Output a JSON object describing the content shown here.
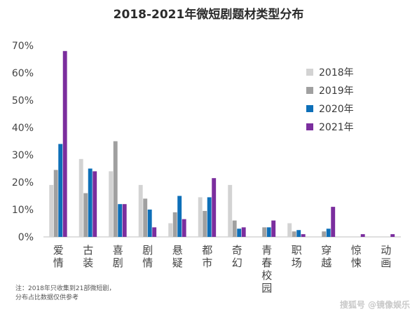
{
  "title": "2018-2021年微短剧题材类型分布",
  "note": [
    "注：2018年只收集到21部微短剧，",
    "分布占比数据仅供参考"
  ],
  "watermark": "搜狐号 @镜像娱乐",
  "chart_data": {
    "type": "bar",
    "title": "2018-2021年微短剧题材类型分布",
    "categories": [
      "爱情",
      "古装",
      "喜剧",
      "剧情",
      "悬疑",
      "都市",
      "奇幻",
      "青春校园",
      "职场",
      "穿越",
      "惊悚",
      "动画"
    ],
    "series": [
      {
        "name": "2018年",
        "color": "#d3d3d3",
        "values": [
          19,
          28.5,
          24,
          19,
          5,
          14.5,
          19,
          0,
          5,
          0,
          0,
          0
        ]
      },
      {
        "name": "2019年",
        "color": "#a0a0a0",
        "values": [
          24.5,
          16,
          35,
          14,
          9,
          9.5,
          6,
          3.5,
          2,
          2,
          0,
          0
        ]
      },
      {
        "name": "2020年",
        "color": "#0d6fb8",
        "values": [
          34,
          25,
          12,
          10,
          15,
          14.5,
          3,
          3.5,
          2.5,
          3,
          0,
          0
        ]
      },
      {
        "name": "2021年",
        "color": "#7b2e9e",
        "values": [
          68,
          24,
          12,
          3.5,
          6.5,
          21.5,
          3.5,
          6,
          1,
          11,
          1,
          1
        ]
      }
    ],
    "ylim": [
      0,
      70
    ],
    "yticks": [
      "0%",
      "10%",
      "20%",
      "30%",
      "40%",
      "50%",
      "60%",
      "70%"
    ],
    "grid": false,
    "legend": "right"
  }
}
